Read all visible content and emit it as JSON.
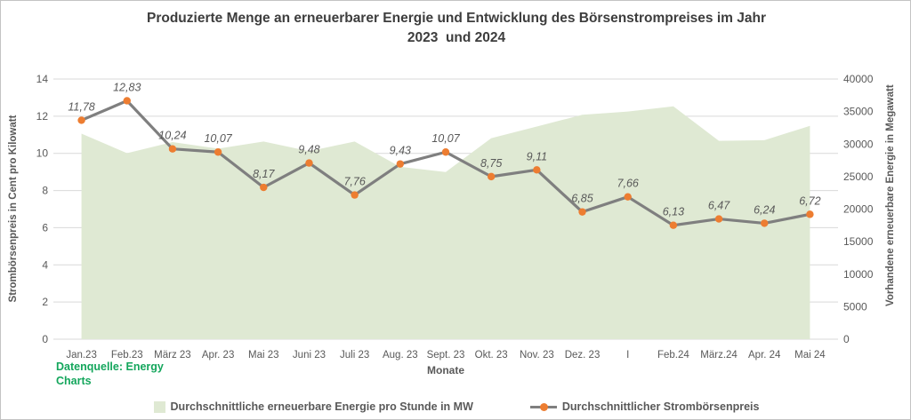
{
  "title": {
    "line1": "Produzierte Menge an erneuerbarer Energie und Entwicklung des Börsenstrompreises im Jahr",
    "line2": "2023  und 2024"
  },
  "source": {
    "line1": "Datenquelle: Energy",
    "line2": "Charts",
    "color": "#14a65c"
  },
  "legend": {
    "items": [
      {
        "label": "Durchschnittliche erneuerbare Energie pro Stunde in MW",
        "swatch": "area-square"
      },
      {
        "label": "Durchschnittlicher Strombörsenpreis",
        "swatch": "line-with-dot"
      }
    ]
  },
  "chart_data": {
    "type": [
      "area",
      "line"
    ],
    "categories": [
      "Jan.23",
      "Feb.23",
      "März 23",
      "Apr. 23",
      "Mai 23",
      "Juni 23",
      "Juli 23",
      "Aug. 23",
      "Sept. 23",
      "Okt. 23",
      "Nov. 23",
      "Dez. 23",
      "I",
      "Feb.24",
      "März.24",
      "Apr. 24",
      "Mai 24"
    ],
    "xlabel": "Monate",
    "grid": "horizontal",
    "legend_position": "bottom",
    "left_axis": {
      "title": "Strombörsenpreis in Cent pro Kilowatt",
      "min": 0,
      "max": 14,
      "step": 2,
      "ticks": [
        "0",
        "2",
        "4",
        "6",
        "8",
        "10",
        "12",
        "14"
      ]
    },
    "right_axis": {
      "title": "Vorhandene erneuerbare Energie in Megawatt",
      "min": 0,
      "max": 40000,
      "step": 5000,
      "ticks": [
        "0",
        "5000",
        "10000",
        "15000",
        "20000",
        "25000",
        "30000",
        "35000",
        "40000"
      ]
    },
    "series": [
      {
        "name": "Durchschnittliche erneuerbare Energie pro Stunde in MW",
        "type": "area",
        "axis": "right",
        "color": "#dfe9d3",
        "values": [
          31600,
          28600,
          30300,
          29300,
          30400,
          28900,
          30400,
          26500,
          25700,
          30900,
          32700,
          34500,
          35000,
          35800,
          30500,
          30600,
          32800
        ]
      },
      {
        "name": "Durchschnittlicher Strombörsenpreis",
        "type": "line",
        "axis": "left",
        "color": "#7f7f7f",
        "marker_color": "#ed7d31",
        "values": [
          11.78,
          12.83,
          10.24,
          10.07,
          8.17,
          9.48,
          7.76,
          9.43,
          10.07,
          8.75,
          9.11,
          6.85,
          7.66,
          6.13,
          6.47,
          6.24,
          6.72
        ],
        "labels": [
          "11,78",
          "12,83",
          "10,24",
          "10,07",
          "8,17",
          "9,48",
          "7,76",
          "9,43",
          "10,07",
          "8,75",
          "9,11",
          "6,85",
          "7,66",
          "6,13",
          "6,47",
          "6,24",
          "6,72"
        ]
      }
    ],
    "grid_color": "#d9d9d9"
  }
}
